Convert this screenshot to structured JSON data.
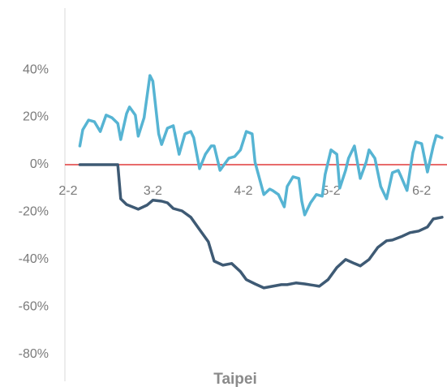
{
  "chart_data": {
    "type": "line",
    "xlabel": "Taipei",
    "xlim": [
      -1.1,
      129.7
    ],
    "xticks": [
      {
        "value": 0,
        "label": "2-2"
      },
      {
        "value": 29,
        "label": "3-2"
      },
      {
        "value": 60,
        "label": "4-2"
      },
      {
        "value": 90,
        "label": "5-2"
      },
      {
        "value": 121,
        "label": "6-2"
      }
    ],
    "ylim": [
      -90,
      65
    ],
    "yticks": [
      {
        "value": 40,
        "label": "40%"
      },
      {
        "value": 20,
        "label": "20%"
      },
      {
        "value": 0,
        "label": "0%"
      },
      {
        "value": -20,
        "label": "-20%"
      },
      {
        "value": -40,
        "label": "-40%"
      },
      {
        "value": -60,
        "label": "-60%"
      },
      {
        "value": -80,
        "label": "-80%"
      }
    ],
    "zero_line_color": "#e03a3a",
    "series": [
      {
        "color": "#56b4d3",
        "x": [
          4,
          5,
          7,
          9,
          11,
          13,
          15,
          17,
          18,
          20,
          21,
          23,
          24,
          26,
          28,
          29,
          31,
          32,
          34,
          36,
          38,
          40,
          42,
          43,
          45,
          47,
          49,
          50,
          52,
          53,
          55,
          57,
          59,
          61,
          63,
          64,
          67,
          69,
          70,
          72,
          74,
          75,
          77,
          79,
          80,
          81,
          83,
          85,
          87,
          88,
          90,
          92,
          93,
          95,
          96,
          98,
          100,
          102,
          103,
          105,
          107,
          109,
          111,
          113,
          114,
          116,
          118,
          119,
          121,
          123,
          125,
          126,
          128
        ],
        "values": [
          7.9,
          14.7,
          18.8,
          18.1,
          14,
          20.9,
          19.8,
          17.4,
          10.6,
          21.5,
          24.3,
          20.9,
          12,
          19.8,
          37.6,
          35.2,
          13,
          8.5,
          15.4,
          16.4,
          4.4,
          13,
          14,
          11.3,
          -1.7,
          4.4,
          7.9,
          7.9,
          -2.4,
          -0.7,
          2.7,
          3.4,
          6.2,
          14,
          13,
          1,
          -12.6,
          -10.3,
          -10.9,
          -12.6,
          -17.8,
          -9.2,
          -5.1,
          -5.8,
          -15.4,
          -21.2,
          -16.1,
          -12.6,
          -13.3,
          -4.1,
          6.2,
          4.4,
          -9.9,
          -2.4,
          2.7,
          7.9,
          -5.8,
          1,
          6.2,
          2.7,
          -9.2,
          -14.4,
          -3.4,
          -2.4,
          -5.1,
          -10.9,
          5.1,
          9.6,
          8.9,
          -3.1,
          7.9,
          12.3,
          11.3
        ]
      },
      {
        "color": "#3e5a74",
        "x": [
          4,
          17,
          18,
          20,
          22,
          24,
          27,
          29,
          32,
          34,
          36,
          39,
          42,
          45,
          48,
          50,
          53,
          56,
          59,
          61,
          64,
          67,
          70,
          73,
          75,
          78,
          81,
          84,
          86,
          89,
          92,
          95,
          98,
          100,
          103,
          106,
          109,
          111,
          114,
          117,
          120,
          123,
          125,
          128
        ],
        "values": [
          0,
          0,
          -14.4,
          -16.8,
          -17.8,
          -18.8,
          -17.1,
          -15,
          -15.4,
          -16.1,
          -18.5,
          -19.5,
          -22.2,
          -27.4,
          -32.5,
          -40.7,
          -42.4,
          -41.7,
          -45.1,
          -48.5,
          -50.3,
          -52,
          -51.3,
          -50.6,
          -50.6,
          -49.9,
          -50.3,
          -50.9,
          -51.3,
          -48.5,
          -43.4,
          -40,
          -41.7,
          -42.7,
          -40,
          -34.9,
          -32.1,
          -31.8,
          -30.4,
          -28.7,
          -28,
          -26.3,
          -22.9,
          -22.2
        ]
      }
    ]
  }
}
